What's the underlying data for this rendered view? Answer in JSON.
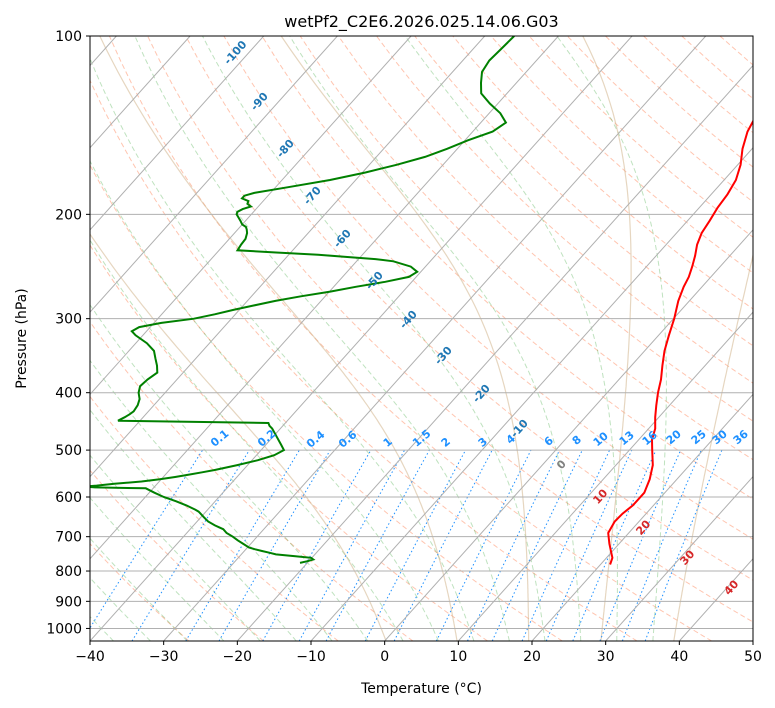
{
  "chart_data": {
    "type": "skew-t",
    "title": "wetPf2_C2E6.2026.025.14.06.G03",
    "xlabel": "Temperature (°C)",
    "ylabel": "Pressure (hPa)",
    "xlim": [
      -40,
      50
    ],
    "ylim": [
      1050,
      100
    ],
    "x_ticks": [
      -40,
      -30,
      -20,
      -10,
      0,
      10,
      20,
      30,
      40,
      50
    ],
    "x_tick_labels": [
      "−40",
      "−30",
      "−20",
      "−10",
      "0",
      "10",
      "20",
      "30",
      "40",
      "50"
    ],
    "y_ticks": [
      100,
      200,
      300,
      400,
      500,
      600,
      700,
      800,
      900,
      1000
    ],
    "y_tick_labels": [
      "100",
      "200",
      "300",
      "400",
      "500",
      "600",
      "700",
      "800",
      "900",
      "1000"
    ],
    "temperature_profile": {
      "name": "Temperature",
      "color": "#ff0000",
      "pressure": [
        780,
        760,
        720,
        690,
        660,
        640,
        620,
        590,
        560,
        530,
        500,
        480,
        460,
        440,
        420,
        400,
        380,
        360,
        340,
        320,
        300,
        280,
        265,
        255,
        245,
        235,
        225,
        215,
        205,
        195,
        185,
        175,
        165,
        155,
        145,
        135,
        125,
        115,
        108,
        100
      ],
      "values": [
        21.3,
        20.8,
        18.7,
        17.2,
        16.7,
        16.8,
        17.2,
        17.2,
        16.3,
        15.0,
        13.1,
        11.8,
        10.9,
        9.5,
        8.2,
        6.9,
        5.7,
        4.2,
        2.7,
        1.4,
        0.1,
        -1.5,
        -2.5,
        -3.0,
        -3.8,
        -4.7,
        -5.8,
        -6.6,
        -7.0,
        -7.5,
        -7.8,
        -8.4,
        -9.6,
        -11.3,
        -12.7,
        -13.6,
        -14.0,
        -14.8,
        -15.3,
        -16.2
      ]
    },
    "dewpoint_profile": {
      "name": "Dewpoint",
      "color": "#008000",
      "pressure": [
        775,
        770,
        765,
        760,
        755,
        750,
        745,
        740,
        735,
        730,
        720,
        710,
        700,
        690,
        680,
        675,
        670,
        660,
        650,
        640,
        635,
        630,
        620,
        610,
        600,
        590,
        580,
        578,
        576,
        574,
        570,
        565,
        560,
        555,
        550,
        545,
        540,
        530,
        520,
        510,
        500,
        490,
        470,
        460,
        455,
        450,
        446,
        440,
        435,
        430,
        420,
        410,
        400,
        390,
        380,
        370,
        360,
        350,
        340,
        330,
        320,
        315,
        310,
        305,
        300,
        295,
        290,
        285,
        280,
        275,
        270,
        265,
        260,
        255,
        250,
        245,
        240,
        238,
        236,
        234,
        232,
        230,
        225,
        220,
        215,
        212,
        210,
        208,
        205,
        200,
        198,
        196,
        194,
        192,
        190,
        188,
        186,
        184,
        180,
        175,
        170,
        165,
        160,
        155,
        150,
        145,
        140,
        135,
        130,
        125,
        120,
        115,
        110,
        105,
        100
      ],
      "values": [
        -21.0,
        -20.2,
        -19.6,
        -20.1,
        -22.6,
        -25.3,
        -26.4,
        -27.6,
        -28.8,
        -29.8,
        -31.0,
        -32.2,
        -33.3,
        -34.6,
        -35.5,
        -36.3,
        -37.1,
        -38.5,
        -39.5,
        -40.5,
        -41.0,
        -41.7,
        -43.4,
        -45.3,
        -47.5,
        -49.3,
        -51.0,
        -58.0,
        -59.5,
        -58.0,
        -55.8,
        -52.4,
        -50.2,
        -48.4,
        -46.8,
        -45.3,
        -43.8,
        -41.4,
        -39.2,
        -37.6,
        -36.9,
        -37.9,
        -40.0,
        -41.1,
        -41.8,
        -42.3,
        -63.0,
        -62.5,
        -62.2,
        -62.0,
        -62.2,
        -62.7,
        -63.6,
        -64.2,
        -64.0,
        -63.5,
        -64.4,
        -65.5,
        -66.6,
        -68.5,
        -71.0,
        -72.0,
        -71.5,
        -69.0,
        -65.1,
        -62.8,
        -60.8,
        -58.6,
        -56.2,
        -53.3,
        -49.9,
        -47.0,
        -43.6,
        -41.0,
        -40.5,
        -42.0,
        -45.0,
        -47.7,
        -52.0,
        -56.0,
        -62.0,
        -67.5,
        -67.7,
        -67.8,
        -68.3,
        -68.8,
        -69.2,
        -70.0,
        -70.7,
        -72.0,
        -72.2,
        -71.8,
        -71.0,
        -71.8,
        -72.0,
        -73.2,
        -73.2,
        -72.2,
        -68.3,
        -63.5,
        -59.6,
        -56.3,
        -53.4,
        -51.4,
        -49.6,
        -47.3,
        -46.6,
        -48.5,
        -51.1,
        -53.5,
        -54.8,
        -56.0,
        -56.4,
        -56.2,
        -56.0
      ]
    },
    "dry_adiabat_labels": {
      "values": [
        0,
        10,
        20,
        30,
        40
      ],
      "color": "#d62728"
    },
    "saturation_labels": {
      "values": [
        -100,
        -90,
        -80,
        -70,
        -60,
        -50,
        -40,
        -30,
        -20,
        -10
      ],
      "color": "#1f77b4"
    },
    "mixing_ratio_labels": {
      "values": [
        "0.1",
        "0.2",
        "0.4",
        "0.6",
        "1",
        "1.5",
        "2",
        "3",
        "4",
        "6",
        "8",
        "10",
        "13",
        "16",
        "20",
        "25",
        "30",
        "36"
      ],
      "color": "#1e90ff"
    },
    "grid": true
  },
  "colors": {
    "dry": "#ff7f50",
    "moist": "#2ca02c",
    "theta": "#d2b48c",
    "mix": "#1e90ff"
  }
}
